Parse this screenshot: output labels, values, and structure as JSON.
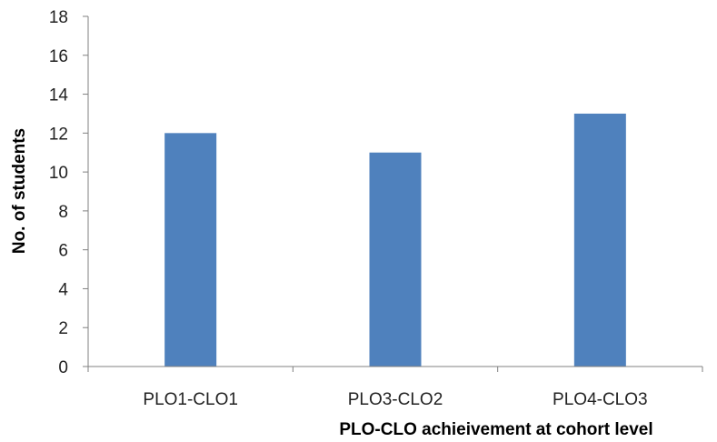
{
  "chart_data": {
    "type": "bar",
    "categories": [
      "PLO1-CLO1",
      "PLO3-CLO2",
      "PLO4-CLO3"
    ],
    "values": [
      12,
      11,
      13
    ],
    "title": "",
    "xlabel": "PLO-CLO achieivement at cohort level",
    "ylabel": "No. of students",
    "ylim": [
      0,
      18
    ],
    "yticks": [
      0,
      2,
      4,
      6,
      8,
      10,
      12,
      14,
      16,
      18
    ],
    "grid": false,
    "legend": "none",
    "bar_color": "#4f81bd"
  }
}
